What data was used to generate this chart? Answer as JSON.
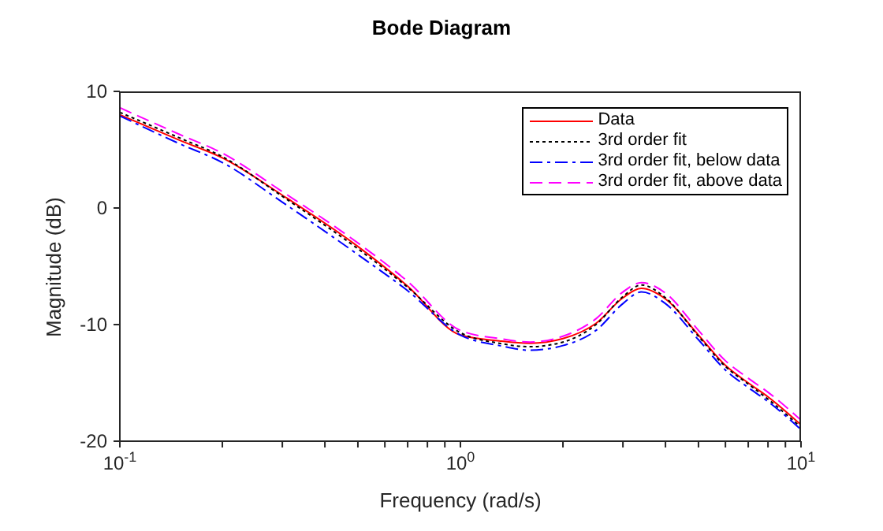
{
  "chart_data": {
    "type": "line",
    "title": "Bode Diagram",
    "xlabel": "Frequency (rad/s)",
    "ylabel": "Magnitude (dB)",
    "log": "x",
    "xlim": [
      0.1,
      10
    ],
    "ylim": [
      -20,
      10
    ],
    "xticks": [
      {
        "value": 0.1,
        "label": "10$^{-1}$"
      },
      {
        "value": 0.2,
        "label": null
      },
      {
        "value": 0.3,
        "label": null
      },
      {
        "value": 0.4,
        "label": null
      },
      {
        "value": 0.5,
        "label": null
      },
      {
        "value": 0.6,
        "label": null
      },
      {
        "value": 0.7,
        "label": null
      },
      {
        "value": 0.8,
        "label": null
      },
      {
        "value": 0.9,
        "label": null
      },
      {
        "value": 1,
        "label": "10$^{0}$"
      },
      {
        "value": 2,
        "label": null
      },
      {
        "value": 3,
        "label": null
      },
      {
        "value": 4,
        "label": null
      },
      {
        "value": 5,
        "label": null
      },
      {
        "value": 6,
        "label": null
      },
      {
        "value": 7,
        "label": null
      },
      {
        "value": 8,
        "label": null
      },
      {
        "value": 9,
        "label": null
      },
      {
        "value": 10,
        "label": "10$^{1}$"
      }
    ],
    "yticks": [
      -20,
      -10,
      0,
      10
    ],
    "grid": false,
    "legend": "top right",
    "marker": "none",
    "x": [
      0.1,
      0.15,
      0.2,
      0.3,
      0.5,
      0.7,
      1,
      1.3,
      1.6,
      2,
      2.5,
      3,
      3.4,
      4,
      5,
      6,
      7,
      8,
      10
    ],
    "series": [
      {
        "name": "Data",
        "color": "#ff0000",
        "line_style": "solid",
        "values": [
          8.0,
          5.8,
          4.3,
          1.1,
          -3.3,
          -6.7,
          -10.9,
          -11.4,
          -11.6,
          -11.2,
          -9.9,
          -7.7,
          -6.9,
          -7.8,
          -10.9,
          -13.5,
          -15.0,
          -16.2,
          -18.6
        ]
      },
      {
        "name": "3rd order fit",
        "color": "#000000",
        "line_style": "dotted",
        "values": [
          8.2,
          6.0,
          4.4,
          1.0,
          -3.5,
          -6.8,
          -10.7,
          -11.6,
          -11.9,
          -11.5,
          -10.0,
          -7.6,
          -6.6,
          -7.7,
          -11.0,
          -13.6,
          -15.1,
          -16.4,
          -18.8
        ]
      },
      {
        "name": "3rd order fit, below data",
        "color": "#0000ff",
        "line_style": "dashdot",
        "values": [
          7.9,
          5.5,
          3.9,
          0.5,
          -4.0,
          -7.1,
          -10.9,
          -11.8,
          -12.2,
          -11.8,
          -10.5,
          -8.2,
          -7.2,
          -8.2,
          -11.3,
          -13.9,
          -15.4,
          -16.6,
          -19.0
        ]
      },
      {
        "name": "3rd order fit, above data",
        "color": "#ff00ff",
        "line_style": "dashed",
        "values": [
          8.6,
          6.3,
          4.7,
          1.4,
          -3.0,
          -6.3,
          -10.5,
          -11.2,
          -11.5,
          -11.0,
          -9.5,
          -7.2,
          -6.4,
          -7.3,
          -10.5,
          -13.1,
          -14.6,
          -15.8,
          -18.2
        ]
      }
    ]
  }
}
